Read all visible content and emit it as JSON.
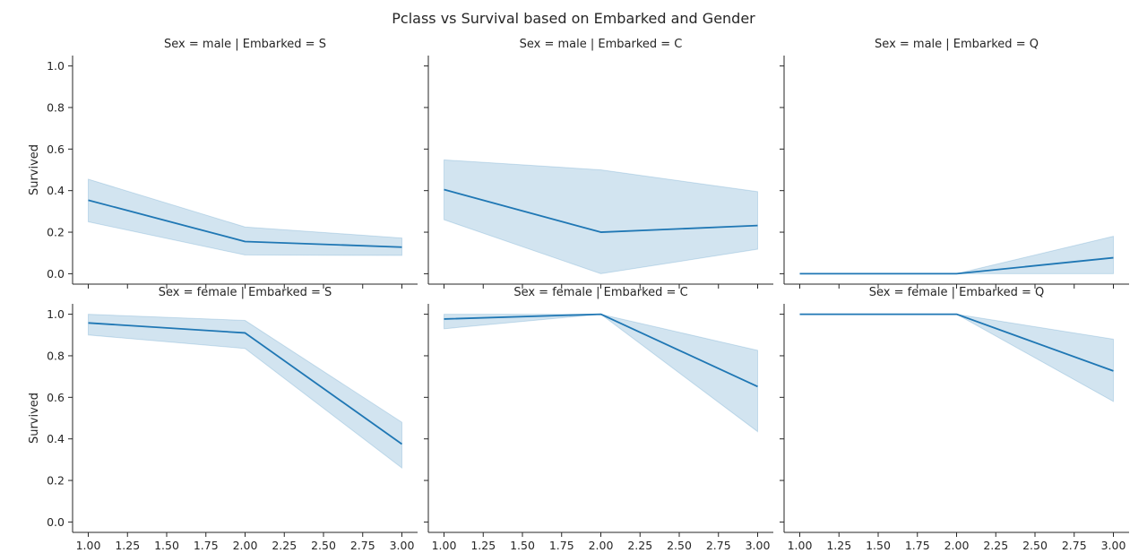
{
  "chart_data": {
    "type": "line",
    "title": "Pclass vs Survival based on Embarked and Gender",
    "ylabel": "Survived",
    "xlim": [
      0.9,
      3.1
    ],
    "ylim": [
      -0.05,
      1.05
    ],
    "xticks": [
      "1.00",
      "1.25",
      "1.50",
      "1.75",
      "2.00",
      "2.25",
      "2.50",
      "2.75",
      "3.00"
    ],
    "xtick_values": [
      1.0,
      1.25,
      1.5,
      1.75,
      2.0,
      2.25,
      2.5,
      2.75,
      3.0
    ],
    "yticks": [
      "0.0",
      "0.2",
      "0.4",
      "0.6",
      "0.8",
      "1.0"
    ],
    "ytick_values": [
      0.0,
      0.2,
      0.4,
      0.6,
      0.8,
      1.0
    ],
    "color": "#1f77b4",
    "panels": [
      {
        "title": "Sex = male | Embarked = S",
        "x": [
          1,
          2,
          3
        ],
        "y": [
          0.354,
          0.155,
          0.128
        ],
        "ci_low": [
          0.25,
          0.09,
          0.088
        ],
        "ci_high": [
          0.455,
          0.225,
          0.172
        ]
      },
      {
        "title": "Sex = male | Embarked = C",
        "x": [
          1,
          2,
          3
        ],
        "y": [
          0.405,
          0.2,
          0.232
        ],
        "ci_low": [
          0.26,
          0.0,
          0.118
        ],
        "ci_high": [
          0.548,
          0.5,
          0.395
        ]
      },
      {
        "title": "Sex = male | Embarked = Q",
        "x": [
          1,
          2,
          3
        ],
        "y": [
          0.0,
          0.0,
          0.077
        ],
        "ci_low": [
          0.0,
          0.0,
          0.0
        ],
        "ci_high": [
          0.0,
          0.0,
          0.18
        ]
      },
      {
        "title": "Sex = female | Embarked = S",
        "x": [
          1,
          2,
          3
        ],
        "y": [
          0.958,
          0.91,
          0.375
        ],
        "ci_low": [
          0.9,
          0.835,
          0.26
        ],
        "ci_high": [
          1.0,
          0.97,
          0.48
        ]
      },
      {
        "title": "Sex = female | Embarked = C",
        "x": [
          1,
          2,
          3
        ],
        "y": [
          0.977,
          1.0,
          0.652
        ],
        "ci_low": [
          0.93,
          1.0,
          0.435
        ],
        "ci_high": [
          1.0,
          1.0,
          0.826
        ]
      },
      {
        "title": "Sex = female | Embarked = Q",
        "x": [
          1,
          2,
          3
        ],
        "y": [
          1.0,
          1.0,
          0.727
        ],
        "ci_low": [
          1.0,
          1.0,
          0.58
        ],
        "ci_high": [
          1.0,
          1.0,
          0.88
        ]
      }
    ]
  }
}
